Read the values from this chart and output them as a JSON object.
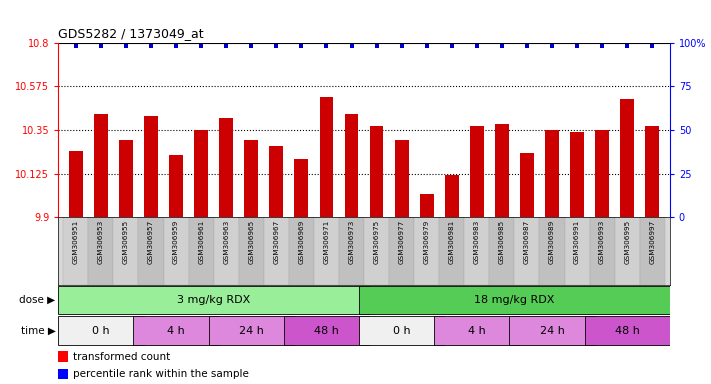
{
  "title": "GDS5282 / 1373049_at",
  "samples": [
    "GSM306951",
    "GSM306953",
    "GSM306955",
    "GSM306957",
    "GSM306959",
    "GSM306961",
    "GSM306963",
    "GSM306965",
    "GSM306967",
    "GSM306969",
    "GSM306971",
    "GSM306973",
    "GSM306975",
    "GSM306977",
    "GSM306979",
    "GSM306981",
    "GSM306983",
    "GSM306985",
    "GSM306987",
    "GSM306989",
    "GSM306991",
    "GSM306993",
    "GSM306995",
    "GSM306997"
  ],
  "bar_values": [
    10.24,
    10.43,
    10.3,
    10.42,
    10.22,
    10.35,
    10.41,
    10.3,
    10.27,
    10.2,
    10.52,
    10.43,
    10.37,
    10.3,
    10.02,
    10.12,
    10.37,
    10.38,
    10.23,
    10.35,
    10.34,
    10.35,
    10.51,
    10.37
  ],
  "percentile_values": [
    98,
    98,
    98,
    98,
    98,
    98,
    98,
    98,
    98,
    98,
    98,
    98,
    98,
    98,
    98,
    98,
    98,
    98,
    98,
    98,
    98,
    98,
    98,
    98
  ],
  "bar_color": "#cc0000",
  "percentile_color": "#0000cc",
  "ymin": 9.9,
  "ymax": 10.8,
  "yticks_left": [
    9.9,
    10.125,
    10.35,
    10.575,
    10.8
  ],
  "ytick_labels_left": [
    "9.9",
    "10.125",
    "10.35",
    "10.575",
    "10.8"
  ],
  "ytick_labels_right": [
    "0",
    "25",
    "50",
    "75",
    "100%"
  ],
  "hlines": [
    10.125,
    10.35,
    10.575
  ],
  "dose_groups": [
    {
      "label": "3 mg/kg RDX",
      "start": 0,
      "end": 12,
      "color": "#99ee99"
    },
    {
      "label": "18 mg/kg RDX",
      "start": 12,
      "end": 24,
      "color": "#55cc55"
    }
  ],
  "time_groups": [
    {
      "label": "0 h",
      "start": 0,
      "end": 3,
      "color": "#f0f0f0"
    },
    {
      "label": "4 h",
      "start": 3,
      "end": 6,
      "color": "#dd88dd"
    },
    {
      "label": "24 h",
      "start": 6,
      "end": 9,
      "color": "#dd88dd"
    },
    {
      "label": "48 h",
      "start": 9,
      "end": 12,
      "color": "#cc55cc"
    },
    {
      "label": "0 h",
      "start": 12,
      "end": 15,
      "color": "#f0f0f0"
    },
    {
      "label": "4 h",
      "start": 15,
      "end": 18,
      "color": "#dd88dd"
    },
    {
      "label": "24 h",
      "start": 18,
      "end": 21,
      "color": "#dd88dd"
    },
    {
      "label": "48 h",
      "start": 21,
      "end": 24,
      "color": "#cc55cc"
    }
  ],
  "tick_bg_color": "#cccccc",
  "tick_alt_bg_color": "#bbbbbb"
}
